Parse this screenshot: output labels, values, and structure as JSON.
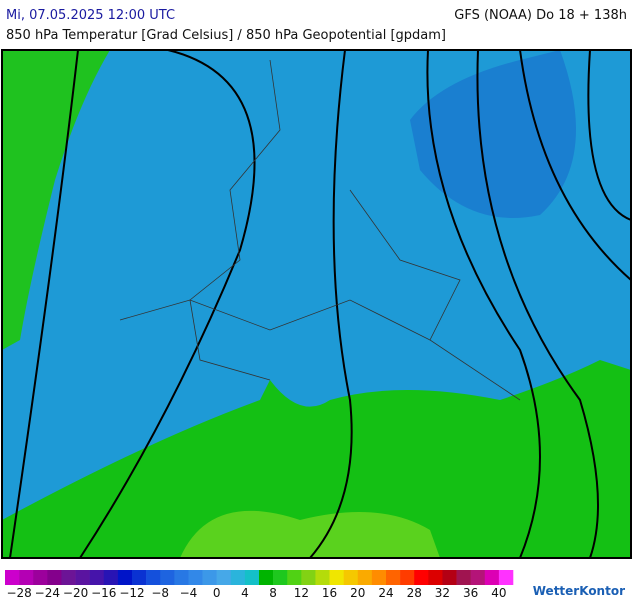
{
  "header": {
    "date": "Mi, 07.05.2025 12:00 UTC",
    "model": "GFS (NOAA) Do 18 + 138h",
    "subtitle": "850 hPa Temperatur [Grad Celsius] / 850 hPa Geopotential [gpdam]"
  },
  "colorbar": {
    "colors": [
      "#cc00cc",
      "#b400b4",
      "#9c009c",
      "#84008c",
      "#6c1496",
      "#5a14a0",
      "#4614aa",
      "#2814b4",
      "#0014c8",
      "#0a32d2",
      "#1450dc",
      "#1e64e0",
      "#2878e4",
      "#3288e8",
      "#3c98e8",
      "#46a8e8",
      "#2ab4dc",
      "#14c0c8",
      "#00b400",
      "#1ec81e",
      "#50d214",
      "#82d214",
      "#b4dc0a",
      "#f0e600",
      "#f5c800",
      "#faaa00",
      "#ff8c00",
      "#ff6400",
      "#ff3c00",
      "#ff0000",
      "#dc0000",
      "#b40014",
      "#a01450",
      "#b41478",
      "#dc00b4",
      "#ff32ff"
    ],
    "ticks": [
      "−28",
      "−24",
      "−20",
      "−16",
      "−12",
      "−8",
      "−4",
      "0",
      "4",
      "8",
      "12",
      "16",
      "20",
      "24",
      "28",
      "32",
      "36",
      "40"
    ]
  },
  "logo": "WetterKontor"
}
